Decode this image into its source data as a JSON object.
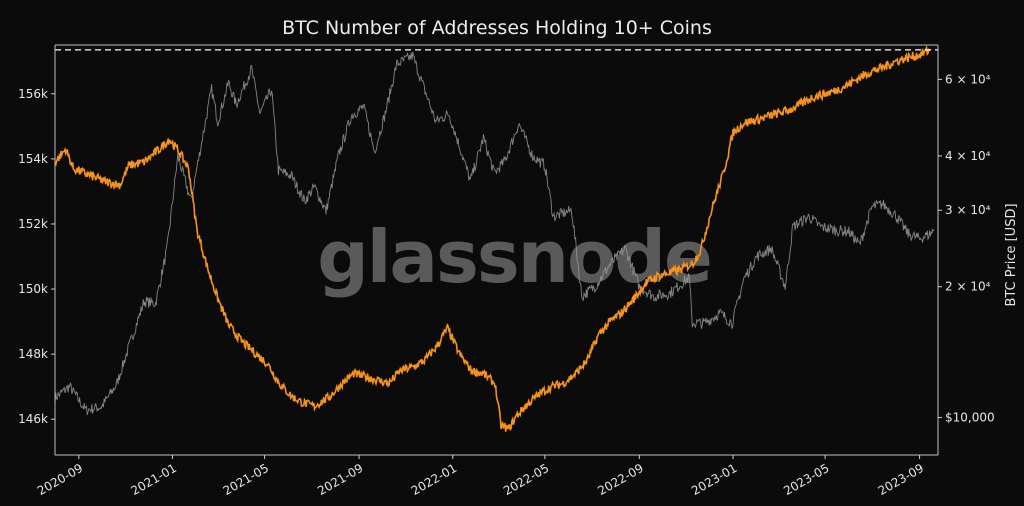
{
  "chart_data": {
    "type": "line",
    "title": "BTC Number of Addresses Holding 10+ Coins",
    "watermark": "glassnode",
    "y_left": {
      "label": "",
      "range": [
        144900,
        157500
      ],
      "ticks": [
        146000,
        148000,
        150000,
        152000,
        154000,
        156000
      ],
      "tick_labels": [
        "146k",
        "148k",
        "150k",
        "152k",
        "154k",
        "156k"
      ]
    },
    "y_right": {
      "label": "BTC Price [USD]",
      "scale": "log",
      "range": [
        8200,
        72000
      ],
      "ticks": [
        10000,
        20000,
        30000,
        40000,
        60000
      ],
      "tick_labels": [
        "$10,000",
        "2 × 10⁴",
        "3 × 10⁴",
        "4 × 10⁴",
        "6 × 10⁴"
      ]
    },
    "x": {
      "range": [
        "2020-08-01",
        "2023-09-25"
      ],
      "ticks": [
        "2020-09-01",
        "2021-01-01",
        "2021-05-01",
        "2021-09-01",
        "2022-01-01",
        "2022-05-01",
        "2022-09-01",
        "2023-01-01",
        "2023-05-01",
        "2023-09-01"
      ],
      "tick_labels": [
        "2020-09",
        "2021-01",
        "2021-05",
        "2021-09",
        "2022-01",
        "2022-05",
        "2022-09",
        "2023-01",
        "2023-05",
        "2023-09"
      ]
    },
    "reference_line": {
      "axis": "left",
      "value": 157350,
      "style": "dashed",
      "color": "#ffffff"
    },
    "series": [
      {
        "axis": "left",
        "color": "#f7931a",
        "points": [
          [
            "2020-08-01",
            153900
          ],
          [
            "2020-08-15",
            154300
          ],
          [
            "2020-08-25",
            153700
          ],
          [
            "2020-09-15",
            153500
          ],
          [
            "2020-10-05",
            153300
          ],
          [
            "2020-10-25",
            153200
          ],
          [
            "2020-11-05",
            153800
          ],
          [
            "2020-11-25",
            153900
          ],
          [
            "2020-12-15",
            154300
          ],
          [
            "2020-12-28",
            154600
          ],
          [
            "2021-01-10",
            154200
          ],
          [
            "2021-01-22",
            153700
          ],
          [
            "2021-02-02",
            151800
          ],
          [
            "2021-02-15",
            150700
          ],
          [
            "2021-03-01",
            149700
          ],
          [
            "2021-03-15",
            148900
          ],
          [
            "2021-04-01",
            148400
          ],
          [
            "2021-04-20",
            148000
          ],
          [
            "2021-05-05",
            147700
          ],
          [
            "2021-05-20",
            147100
          ],
          [
            "2021-06-05",
            146700
          ],
          [
            "2021-06-20",
            146500
          ],
          [
            "2021-07-05",
            146400
          ],
          [
            "2021-07-25",
            146700
          ],
          [
            "2021-08-10",
            147100
          ],
          [
            "2021-08-25",
            147400
          ],
          [
            "2021-09-10",
            147300
          ],
          [
            "2021-09-25",
            147200
          ],
          [
            "2021-10-10",
            147100
          ],
          [
            "2021-10-25",
            147500
          ],
          [
            "2021-11-10",
            147600
          ],
          [
            "2021-11-25",
            147800
          ],
          [
            "2021-12-10",
            148200
          ],
          [
            "2021-12-25",
            148800
          ],
          [
            "2022-01-10",
            148000
          ],
          [
            "2022-01-25",
            147500
          ],
          [
            "2022-02-10",
            147400
          ],
          [
            "2022-02-25",
            147100
          ],
          [
            "2022-03-05",
            145800
          ],
          [
            "2022-03-15",
            145700
          ],
          [
            "2022-03-25",
            146100
          ],
          [
            "2022-04-10",
            146500
          ],
          [
            "2022-04-25",
            146800
          ],
          [
            "2022-05-10",
            147000
          ],
          [
            "2022-05-25",
            147100
          ],
          [
            "2022-06-10",
            147400
          ],
          [
            "2022-06-25",
            147800
          ],
          [
            "2022-07-10",
            148600
          ],
          [
            "2022-07-25",
            149000
          ],
          [
            "2022-08-10",
            149300
          ],
          [
            "2022-08-25",
            149700
          ],
          [
            "2022-09-10",
            150200
          ],
          [
            "2022-09-25",
            150400
          ],
          [
            "2022-10-10",
            150500
          ],
          [
            "2022-10-25",
            150600
          ],
          [
            "2022-11-10",
            150800
          ],
          [
            "2022-11-20",
            151200
          ],
          [
            "2022-12-05",
            152500
          ],
          [
            "2022-12-20",
            153600
          ],
          [
            "2023-01-01",
            154800
          ],
          [
            "2023-01-15",
            155100
          ],
          [
            "2023-02-01",
            155200
          ],
          [
            "2023-02-15",
            155300
          ],
          [
            "2023-03-01",
            155400
          ],
          [
            "2023-03-15",
            155500
          ],
          [
            "2023-04-01",
            155700
          ],
          [
            "2023-04-15",
            155900
          ],
          [
            "2023-05-01",
            156000
          ],
          [
            "2023-05-15",
            156100
          ],
          [
            "2023-06-01",
            156300
          ],
          [
            "2023-06-15",
            156500
          ],
          [
            "2023-07-01",
            156700
          ],
          [
            "2023-07-15",
            156800
          ],
          [
            "2023-08-01",
            157000
          ],
          [
            "2023-08-15",
            157100
          ],
          [
            "2023-09-01",
            157200
          ],
          [
            "2023-09-15",
            157350
          ]
        ]
      },
      {
        "axis": "right",
        "color": "#9a9a9a",
        "points": [
          [
            "2020-08-01",
            11100
          ],
          [
            "2020-08-20",
            11800
          ],
          [
            "2020-09-10",
            10400
          ],
          [
            "2020-10-01",
            10600
          ],
          [
            "2020-10-20",
            11900
          ],
          [
            "2020-11-05",
            14500
          ],
          [
            "2020-11-25",
            18500
          ],
          [
            "2020-12-10",
            18300
          ],
          [
            "2020-12-25",
            24500
          ],
          [
            "2021-01-08",
            40000
          ],
          [
            "2021-01-25",
            31500
          ],
          [
            "2021-02-10",
            45000
          ],
          [
            "2021-02-21",
            57000
          ],
          [
            "2021-03-01",
            48000
          ],
          [
            "2021-03-15",
            59000
          ],
          [
            "2021-03-25",
            52500
          ],
          [
            "2021-04-14",
            63500
          ],
          [
            "2021-04-25",
            50000
          ],
          [
            "2021-05-10",
            57000
          ],
          [
            "2021-05-19",
            37000
          ],
          [
            "2021-06-05",
            36000
          ],
          [
            "2021-06-22",
            31500
          ],
          [
            "2021-07-05",
            34000
          ],
          [
            "2021-07-20",
            29800
          ],
          [
            "2021-08-05",
            40000
          ],
          [
            "2021-08-22",
            49500
          ],
          [
            "2021-09-07",
            52000
          ],
          [
            "2021-09-21",
            41000
          ],
          [
            "2021-10-05",
            50000
          ],
          [
            "2021-10-20",
            65000
          ],
          [
            "2021-11-10",
            68000
          ],
          [
            "2021-11-25",
            57000
          ],
          [
            "2021-12-10",
            48000
          ],
          [
            "2021-12-27",
            50000
          ],
          [
            "2022-01-10",
            42000
          ],
          [
            "2022-01-24",
            35000
          ],
          [
            "2022-02-10",
            44000
          ],
          [
            "2022-02-24",
            36500
          ],
          [
            "2022-03-10",
            39000
          ],
          [
            "2022-03-28",
            47500
          ],
          [
            "2022-04-15",
            40000
          ],
          [
            "2022-05-01",
            38000
          ],
          [
            "2022-05-12",
            29000
          ],
          [
            "2022-06-05",
            30000
          ],
          [
            "2022-06-18",
            19000
          ],
          [
            "2022-07-05",
            20000
          ],
          [
            "2022-07-25",
            22500
          ],
          [
            "2022-08-14",
            24500
          ],
          [
            "2022-09-01",
            20000
          ],
          [
            "2022-09-20",
            19000
          ],
          [
            "2022-10-10",
            19300
          ],
          [
            "2022-11-05",
            21000
          ],
          [
            "2022-11-09",
            16500
          ],
          [
            "2022-11-25",
            16500
          ],
          [
            "2022-12-15",
            17400
          ],
          [
            "2022-12-31",
            16500
          ],
          [
            "2023-01-15",
            20800
          ],
          [
            "2023-02-01",
            23500
          ],
          [
            "2023-02-20",
            24500
          ],
          [
            "2023-03-10",
            20000
          ],
          [
            "2023-03-20",
            27500
          ],
          [
            "2023-04-10",
            29000
          ],
          [
            "2023-04-25",
            27500
          ],
          [
            "2023-05-15",
            27000
          ],
          [
            "2023-06-01",
            26800
          ],
          [
            "2023-06-15",
            25000
          ],
          [
            "2023-07-01",
            30500
          ],
          [
            "2023-07-15",
            31000
          ],
          [
            "2023-08-01",
            29200
          ],
          [
            "2023-08-17",
            26500
          ],
          [
            "2023-09-01",
            25800
          ],
          [
            "2023-09-15",
            26500
          ],
          [
            "2023-09-20",
            27000
          ]
        ]
      }
    ]
  }
}
